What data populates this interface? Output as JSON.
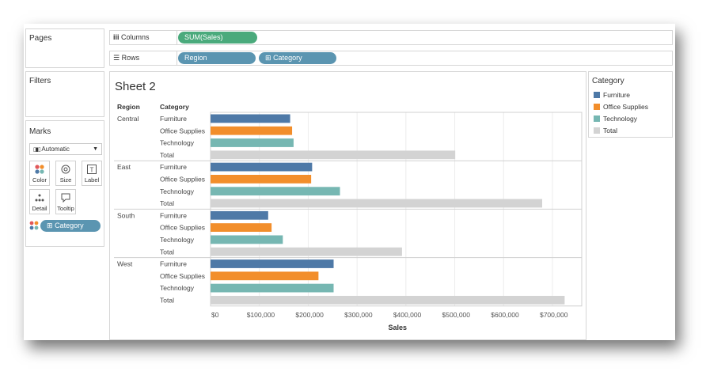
{
  "panels": {
    "pages_label": "Pages",
    "filters_label": "Filters",
    "marks_label": "Marks",
    "marks_type": "Automatic",
    "mark_buttons": [
      "Color",
      "Size",
      "Label",
      "Detail",
      "Tooltip"
    ],
    "marks_pill": "Category"
  },
  "shelves": {
    "columns_label": "Columns",
    "columns_pill": "SUM(Sales)",
    "rows_label": "Rows",
    "rows_pills": [
      "Region",
      "Category"
    ]
  },
  "sheet": {
    "title": "Sheet 2"
  },
  "colors": {
    "Furniture": "#4e79a7",
    "Office Supplies": "#f28e2b",
    "Technology": "#76b7b2",
    "Total": "#d3d3d3",
    "pill_green": "#4aaa7c",
    "pill_blue": "#5b95b1"
  },
  "chart_data": {
    "type": "bar",
    "orientation": "horizontal",
    "row_headers": [
      "Region",
      "Category"
    ],
    "regions": [
      "Central",
      "East",
      "South",
      "West"
    ],
    "categories": [
      "Furniture",
      "Office Supplies",
      "Technology",
      "Total"
    ],
    "values": {
      "Central": [
        163000,
        167000,
        170000,
        501000
      ],
      "East": [
        208000,
        206000,
        265000,
        679000
      ],
      "South": [
        118000,
        125000,
        148000,
        392000
      ],
      "West": [
        252000,
        221000,
        252000,
        725000
      ]
    },
    "xlabel": "Sales",
    "ticks": [
      0,
      100000,
      200000,
      300000,
      400000,
      500000,
      600000,
      700000
    ],
    "tick_labels": [
      "$0",
      "$100,000",
      "$200,000",
      "$300,000",
      "$400,000",
      "$500,000",
      "$600,000",
      "$700,000"
    ],
    "xlim": [
      0,
      760000
    ],
    "grid": true
  },
  "legend": {
    "title": "Category",
    "items": [
      "Furniture",
      "Office Supplies",
      "Technology",
      "Total"
    ]
  }
}
